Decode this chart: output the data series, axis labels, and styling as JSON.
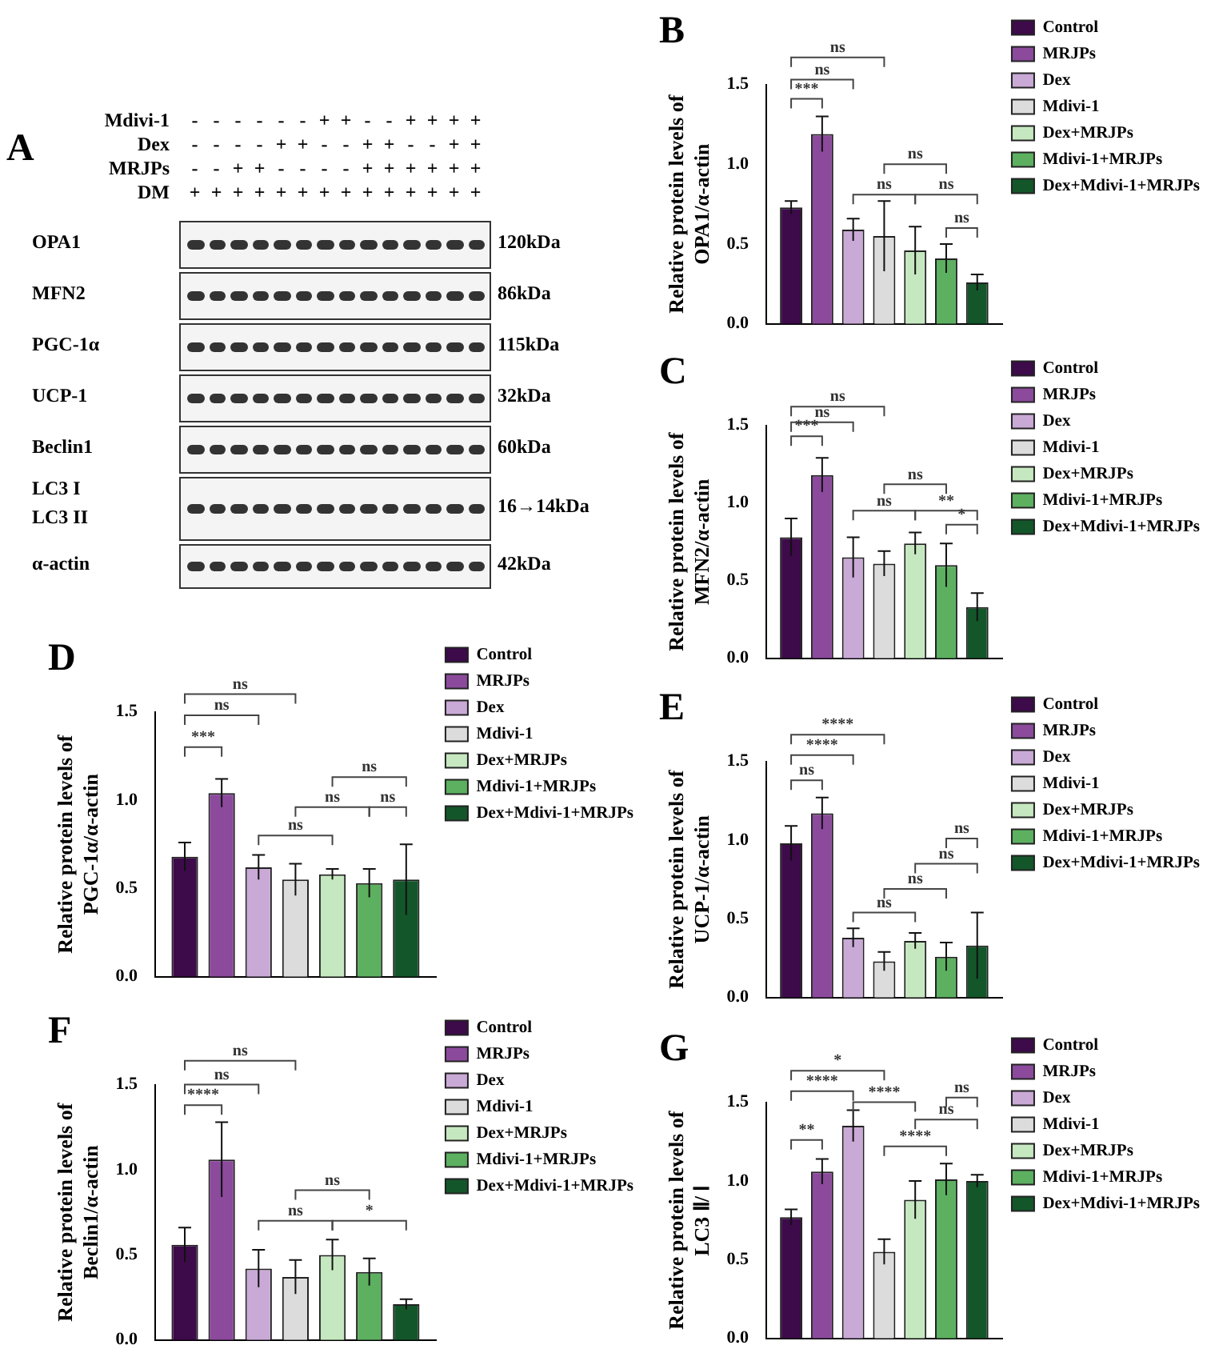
{
  "chart_data": [
    {
      "type": "other",
      "title": "A",
      "annotations": [
        "Mdivi-1",
        "- - - - - - + + - - + + + +",
        "Dex",
        "- - - - + + - - + + - - + +",
        "MRJPs",
        "- - + + - - - - + + + + + +",
        "DM",
        "+ + + + + + + + + + + + + +",
        "OPA1",
        "120kDa",
        "MFN2",
        "86kDa",
        "PGC-1α",
        "115kDa",
        "UCP-1",
        "32kDa",
        "Beclin1",
        "60kDa",
        "LC3 I",
        "LC3 II",
        "16→14kDa",
        "α-actin",
        "42kDa"
      ]
    },
    {
      "type": "bar",
      "title": "B",
      "ylabel": "Relative protein levels of OPA1/α-actin",
      "categories": [
        null
      ],
      "ylim": [
        0,
        1.5
      ],
      "yticks": [
        {
          "value": 0,
          "label": "0.0"
        },
        {
          "value": 0.5,
          "label": "0.5"
        },
        {
          "value": 1,
          "label": "1.0"
        },
        {
          "value": 1.5,
          "label": "1.5"
        }
      ],
      "legend": "right",
      "tick_labels": "y",
      "annotations": [
        "ns",
        "ns",
        "***",
        "ns",
        "ns",
        "ns",
        "ns"
      ],
      "series": [
        {
          "name": "Control",
          "color": "#3d0a4a",
          "values": [
            0.73
          ],
          "errors": [
            0.04
          ]
        },
        {
          "name": "MRJPs",
          "color": "#8b4a9c",
          "values": [
            1.19
          ],
          "errors": [
            0.11
          ]
        },
        {
          "name": "Dex",
          "color": "#c9a9d6",
          "values": [
            0.59
          ],
          "errors": [
            0.07
          ]
        },
        {
          "name": "Mdivi-1",
          "color": "#dcdcdc",
          "values": [
            0.55
          ],
          "errors": [
            0.22
          ]
        },
        {
          "name": "Dex+MRJPs",
          "color": "#c6e8c0",
          "values": [
            0.46
          ],
          "errors": [
            0.15
          ]
        },
        {
          "name": "Mdivi-1+MRJPs",
          "color": "#5cb060",
          "values": [
            0.41
          ],
          "errors": [
            0.09
          ]
        },
        {
          "name": "Dex+Mdivi-1+MRJPs",
          "color": "#13562a",
          "values": [
            0.26
          ],
          "errors": [
            0.05
          ]
        }
      ]
    },
    {
      "type": "bar",
      "title": "C",
      "ylabel": "Relative protein levels of MFN2/α-actin",
      "categories": [
        null
      ],
      "ylim": [
        0,
        1.5
      ],
      "yticks": [
        {
          "value": 0,
          "label": "0.0"
        },
        {
          "value": 0.5,
          "label": "0.5"
        },
        {
          "value": 1,
          "label": "1.0"
        },
        {
          "value": 1.5,
          "label": "1.5"
        }
      ],
      "legend": "right",
      "tick_labels": "y",
      "annotations": [
        "ns",
        "ns",
        "***",
        "ns",
        "ns",
        "**",
        "*"
      ],
      "series": [
        {
          "name": "Control",
          "color": "#3d0a4a",
          "values": [
            0.78
          ],
          "errors": [
            0.12
          ]
        },
        {
          "name": "MRJPs",
          "color": "#8b4a9c",
          "values": [
            1.18
          ],
          "errors": [
            0.11
          ]
        },
        {
          "name": "Dex",
          "color": "#c9a9d6",
          "values": [
            0.65
          ],
          "errors": [
            0.13
          ]
        },
        {
          "name": "Mdivi-1",
          "color": "#dcdcdc",
          "values": [
            0.61
          ],
          "errors": [
            0.08
          ]
        },
        {
          "name": "Dex+MRJPs",
          "color": "#c6e8c0",
          "values": [
            0.74
          ],
          "errors": [
            0.07
          ]
        },
        {
          "name": "Mdivi-1+MRJPs",
          "color": "#5cb060",
          "values": [
            0.6
          ],
          "errors": [
            0.14
          ]
        },
        {
          "name": "Dex+Mdivi-1+MRJPs",
          "color": "#13562a",
          "values": [
            0.33
          ],
          "errors": [
            0.09
          ]
        }
      ]
    },
    {
      "type": "bar",
      "title": "D",
      "ylabel": "Relative protein levels of PGC-1α/α-actin",
      "categories": [
        null
      ],
      "ylim": [
        0,
        1.5
      ],
      "yticks": [
        {
          "value": 0,
          "label": "0.0"
        },
        {
          "value": 0.5,
          "label": "0.5"
        },
        {
          "value": 1,
          "label": "1.0"
        },
        {
          "value": 1.5,
          "label": "1.5"
        }
      ],
      "legend": "right",
      "tick_labels": "y",
      "annotations": [
        "ns",
        "ns",
        "***",
        "ns",
        "ns",
        "ns",
        "ns"
      ],
      "series": [
        {
          "name": "Control",
          "color": "#3d0a4a",
          "values": [
            0.68
          ],
          "errors": [
            0.08
          ]
        },
        {
          "name": "MRJPs",
          "color": "#8b4a9c",
          "values": [
            1.04
          ],
          "errors": [
            0.08
          ]
        },
        {
          "name": "Dex",
          "color": "#c9a9d6",
          "values": [
            0.62
          ],
          "errors": [
            0.07
          ]
        },
        {
          "name": "Mdivi-1",
          "color": "#dcdcdc",
          "values": [
            0.55
          ],
          "errors": [
            0.09
          ]
        },
        {
          "name": "Dex+MRJPs",
          "color": "#c6e8c0",
          "values": [
            0.58
          ],
          "errors": [
            0.03
          ]
        },
        {
          "name": "Mdivi-1+MRJPs",
          "color": "#5cb060",
          "values": [
            0.53
          ],
          "errors": [
            0.08
          ]
        },
        {
          "name": "Dex+Mdivi-1+MRJPs",
          "color": "#13562a",
          "values": [
            0.55
          ],
          "errors": [
            0.2
          ]
        }
      ]
    },
    {
      "type": "bar",
      "title": "E",
      "ylabel": "Relative protein levels of UCP-1/α-actin",
      "categories": [
        null
      ],
      "ylim": [
        0,
        1.5
      ],
      "yticks": [
        {
          "value": 0,
          "label": "0.0"
        },
        {
          "value": 0.5,
          "label": "0.5"
        },
        {
          "value": 1,
          "label": "1.0"
        },
        {
          "value": 1.5,
          "label": "1.5"
        }
      ],
      "legend": "right",
      "tick_labels": "y",
      "annotations": [
        "****",
        "****",
        "ns",
        "ns",
        "ns",
        "ns",
        "ns"
      ],
      "series": [
        {
          "name": "Control",
          "color": "#3d0a4a",
          "values": [
            0.98
          ],
          "errors": [
            0.11
          ]
        },
        {
          "name": "MRJPs",
          "color": "#8b4a9c",
          "values": [
            1.17
          ],
          "errors": [
            0.1
          ]
        },
        {
          "name": "Dex",
          "color": "#c9a9d6",
          "values": [
            0.38
          ],
          "errors": [
            0.06
          ]
        },
        {
          "name": "Mdivi-1",
          "color": "#dcdcdc",
          "values": [
            0.23
          ],
          "errors": [
            0.06
          ]
        },
        {
          "name": "Dex+MRJPs",
          "color": "#c6e8c0",
          "values": [
            0.36
          ],
          "errors": [
            0.05
          ]
        },
        {
          "name": "Mdivi-1+MRJPs",
          "color": "#5cb060",
          "values": [
            0.26
          ],
          "errors": [
            0.09
          ]
        },
        {
          "name": "Dex+Mdivi-1+MRJPs",
          "color": "#13562a",
          "values": [
            0.33
          ],
          "errors": [
            0.21
          ]
        }
      ]
    },
    {
      "type": "bar",
      "title": "F",
      "ylabel": "Relative protein levels of Beclin1/α-actin",
      "categories": [
        null
      ],
      "ylim": [
        0,
        1.5
      ],
      "yticks": [
        {
          "value": 0,
          "label": "0.0"
        },
        {
          "value": 0.5,
          "label": "0.5"
        },
        {
          "value": 1,
          "label": "1.0"
        },
        {
          "value": 1.5,
          "label": "1.5"
        }
      ],
      "legend": "right",
      "tick_labels": "y",
      "annotations": [
        "ns",
        "ns",
        "****",
        "ns",
        "ns",
        "*"
      ],
      "series": [
        {
          "name": "Control",
          "color": "#3d0a4a",
          "values": [
            0.56
          ],
          "errors": [
            0.1
          ]
        },
        {
          "name": "MRJPs",
          "color": "#8b4a9c",
          "values": [
            1.06
          ],
          "errors": [
            0.22
          ]
        },
        {
          "name": "Dex",
          "color": "#c9a9d6",
          "values": [
            0.42
          ],
          "errors": [
            0.11
          ]
        },
        {
          "name": "Mdivi-1",
          "color": "#dcdcdc",
          "values": [
            0.37
          ],
          "errors": [
            0.1
          ]
        },
        {
          "name": "Dex+MRJPs",
          "color": "#c6e8c0",
          "values": [
            0.5
          ],
          "errors": [
            0.09
          ]
        },
        {
          "name": "Mdivi-1+MRJPs",
          "color": "#5cb060",
          "values": [
            0.4
          ],
          "errors": [
            0.08
          ]
        },
        {
          "name": "Dex+Mdivi-1+MRJPs",
          "color": "#13562a",
          "values": [
            0.21
          ],
          "errors": [
            0.03
          ]
        }
      ]
    },
    {
      "type": "bar",
      "title": "G",
      "ylabel": "Relative protein levels of LC3 Ⅱ/ Ⅰ",
      "categories": [
        null
      ],
      "ylim": [
        0,
        1.5
      ],
      "yticks": [
        {
          "value": 0,
          "label": "0.0"
        },
        {
          "value": 0.5,
          "label": "0.5"
        },
        {
          "value": 1,
          "label": "1.0"
        },
        {
          "value": 1.5,
          "label": "1.5"
        }
      ],
      "legend": "right",
      "tick_labels": "y",
      "annotations": [
        "*",
        "****",
        "****",
        "**",
        "ns",
        "ns",
        "****"
      ],
      "series": [
        {
          "name": "Control",
          "color": "#3d0a4a",
          "values": [
            0.77
          ],
          "errors": [
            0.05
          ]
        },
        {
          "name": "MRJPs",
          "color": "#8b4a9c",
          "values": [
            1.06
          ],
          "errors": [
            0.08
          ]
        },
        {
          "name": "Dex",
          "color": "#c9a9d6",
          "values": [
            1.35
          ],
          "errors": [
            0.1
          ]
        },
        {
          "name": "Mdivi-1",
          "color": "#dcdcdc",
          "values": [
            0.55
          ],
          "errors": [
            0.08
          ]
        },
        {
          "name": "Dex+MRJPs",
          "color": "#c6e8c0",
          "values": [
            0.88
          ],
          "errors": [
            0.12
          ]
        },
        {
          "name": "Mdivi-1+MRJPs",
          "color": "#5cb060",
          "values": [
            1.01
          ],
          "errors": [
            0.1
          ]
        },
        {
          "name": "Dex+Mdivi-1+MRJPs",
          "color": "#13562a",
          "values": [
            1.0
          ],
          "errors": [
            0.04
          ]
        }
      ]
    }
  ]
}
